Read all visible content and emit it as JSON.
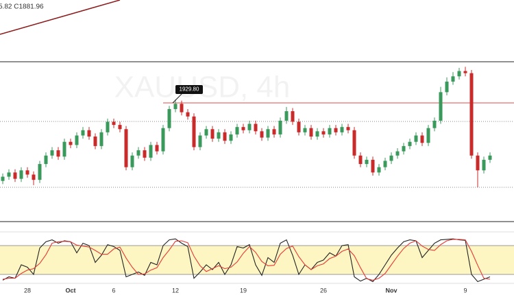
{
  "header_text": "5.82 C1881.96",
  "chart_data": [
    {
      "type": "candlestick",
      "watermark": "XAUUSD, 4h",
      "up_color": "#3a9a5b",
      "down_color": "#c92a2a",
      "ylim": [
        1817.5,
        1968.8
      ],
      "open": [
        1856,
        1860,
        1864,
        1858,
        1866,
        1862,
        1857,
        1872,
        1880,
        1885,
        1879,
        1893,
        1890,
        1899,
        1904,
        1898,
        1889,
        1902,
        1912,
        1909,
        1905,
        1869,
        1880,
        1885,
        1878,
        1890,
        1884,
        1906,
        1924,
        1929,
        1921,
        1917,
        1888,
        1899,
        1905,
        1896,
        1902,
        1894,
        1900,
        1907,
        1904,
        1910,
        1903,
        1897,
        1905,
        1900,
        1913,
        1922,
        1912,
        1902,
        1906,
        1898,
        1903,
        1900,
        1906,
        1902,
        1907,
        1904,
        1880,
        1872,
        1876,
        1864,
        1869,
        1875,
        1880,
        1884,
        1889,
        1893,
        1899,
        1892,
        1906,
        1913,
        1940,
        1950,
        1955,
        1960,
        1958,
        1880,
        1866,
        1876
      ],
      "high": [
        1863,
        1867,
        1867,
        1869,
        1869,
        1865,
        1875,
        1883,
        1888,
        1888,
        1896,
        1896,
        1902,
        1907,
        1907,
        1901,
        1905,
        1915,
        1915,
        1912,
        1908,
        1883,
        1888,
        1888,
        1893,
        1893,
        1909,
        1927,
        1933,
        1932,
        1924,
        1920,
        1902,
        1908,
        1908,
        1905,
        1905,
        1903,
        1910,
        1910,
        1913,
        1913,
        1906,
        1908,
        1908,
        1916,
        1926,
        1925,
        1915,
        1909,
        1909,
        1906,
        1906,
        1909,
        1909,
        1910,
        1910,
        1907,
        1883,
        1879,
        1879,
        1872,
        1878,
        1883,
        1887,
        1892,
        1896,
        1902,
        1902,
        1909,
        1916,
        1945,
        1954,
        1959,
        1963,
        1964,
        1961,
        1883,
        1879,
        1883
      ],
      "low": [
        1853,
        1857,
        1855,
        1855,
        1859,
        1852,
        1854,
        1869,
        1877,
        1876,
        1876,
        1887,
        1887,
        1896,
        1895,
        1886,
        1886,
        1899,
        1906,
        1902,
        1866,
        1866,
        1877,
        1875,
        1875,
        1881,
        1881,
        1903,
        1921,
        1918,
        1914,
        1885,
        1885,
        1896,
        1893,
        1893,
        1891,
        1891,
        1897,
        1901,
        1901,
        1900,
        1894,
        1894,
        1897,
        1897,
        1910,
        1909,
        1899,
        1899,
        1895,
        1895,
        1897,
        1897,
        1899,
        1899,
        1901,
        1877,
        1869,
        1869,
        1861,
        1861,
        1866,
        1872,
        1877,
        1881,
        1886,
        1890,
        1889,
        1889,
        1903,
        1910,
        1937,
        1947,
        1952,
        1955,
        1877,
        1850,
        1863,
        1873
      ],
      "close": [
        1860,
        1864,
        1858,
        1866,
        1862,
        1857,
        1872,
        1880,
        1885,
        1879,
        1893,
        1890,
        1899,
        1904,
        1898,
        1889,
        1902,
        1912,
        1909,
        1905,
        1869,
        1880,
        1885,
        1878,
        1890,
        1884,
        1906,
        1924,
        1929,
        1921,
        1917,
        1888,
        1899,
        1905,
        1896,
        1902,
        1894,
        1900,
        1907,
        1904,
        1910,
        1903,
        1897,
        1905,
        1900,
        1913,
        1922,
        1912,
        1902,
        1906,
        1898,
        1903,
        1900,
        1906,
        1902,
        1907,
        1904,
        1880,
        1872,
        1876,
        1864,
        1869,
        1875,
        1880,
        1884,
        1889,
        1893,
        1899,
        1892,
        1906,
        1913,
        1940,
        1950,
        1955,
        1960,
        1958,
        1880,
        1866,
        1876,
        1880
      ],
      "resistance": {
        "value": 1929.8,
        "label": "1929.80",
        "color": "#e04b4b"
      },
      "levels": [
        1912.3,
        1850
      ]
    },
    {
      "type": "line",
      "band": [
        20,
        80
      ],
      "band_color": "#fdf6c3",
      "categories": [
        null,
        null,
        null,
        null,
        "28",
        null,
        null,
        null,
        null,
        null,
        null,
        "Oct",
        null,
        null,
        null,
        null,
        null,
        null,
        "6",
        null,
        null,
        null,
        null,
        null,
        null,
        null,
        null,
        null,
        "12",
        null,
        null,
        null,
        null,
        null,
        null,
        null,
        null,
        null,
        null,
        "19",
        null,
        null,
        null,
        null,
        null,
        null,
        null,
        null,
        null,
        null,
        null,
        null,
        "26",
        null,
        null,
        null,
        null,
        null,
        null,
        null,
        null,
        null,
        null,
        "Nov",
        null,
        null,
        null,
        null,
        null,
        null,
        null,
        null,
        null,
        null,
        null,
        "9",
        null,
        null,
        null,
        null
      ],
      "ylim": [
        0,
        100
      ],
      "series": [
        {
          "color": "#222222",
          "values": [
            8,
            15,
            12,
            40,
            35,
            20,
            75,
            88,
            92,
            85,
            90,
            88,
            65,
            85,
            80,
            45,
            60,
            82,
            78,
            70,
            15,
            20,
            25,
            18,
            45,
            40,
            80,
            92,
            94,
            85,
            78,
            12,
            25,
            40,
            30,
            45,
            20,
            40,
            78,
            75,
            82,
            40,
            18,
            55,
            45,
            85,
            92,
            60,
            20,
            40,
            30,
            45,
            50,
            65,
            58,
            80,
            82,
            15,
            6,
            12,
            5,
            20,
            40,
            60,
            75,
            88,
            92,
            90,
            55,
            70,
            85,
            92,
            93,
            94,
            92,
            91,
            20,
            5,
            10,
            15
          ]
        },
        {
          "color": "#e53935",
          "values": [
            10,
            12,
            12,
            22,
            29,
            32,
            43,
            61,
            85,
            88,
            89,
            88,
            81,
            79,
            77,
            70,
            62,
            62,
            73,
            77,
            54,
            35,
            20,
            21,
            29,
            34,
            55,
            71,
            89,
            90,
            86,
            58,
            38,
            26,
            32,
            38,
            32,
            35,
            46,
            64,
            78,
            66,
            47,
            38,
            39,
            62,
            74,
            79,
            57,
            40,
            30,
            38,
            42,
            53,
            58,
            68,
            73,
            59,
            34,
            11,
            8,
            12,
            22,
            40,
            58,
            74,
            85,
            90,
            79,
            72,
            70,
            82,
            90,
            93,
            93,
            92,
            68,
            39,
            12,
            10
          ]
        }
      ]
    }
  ]
}
